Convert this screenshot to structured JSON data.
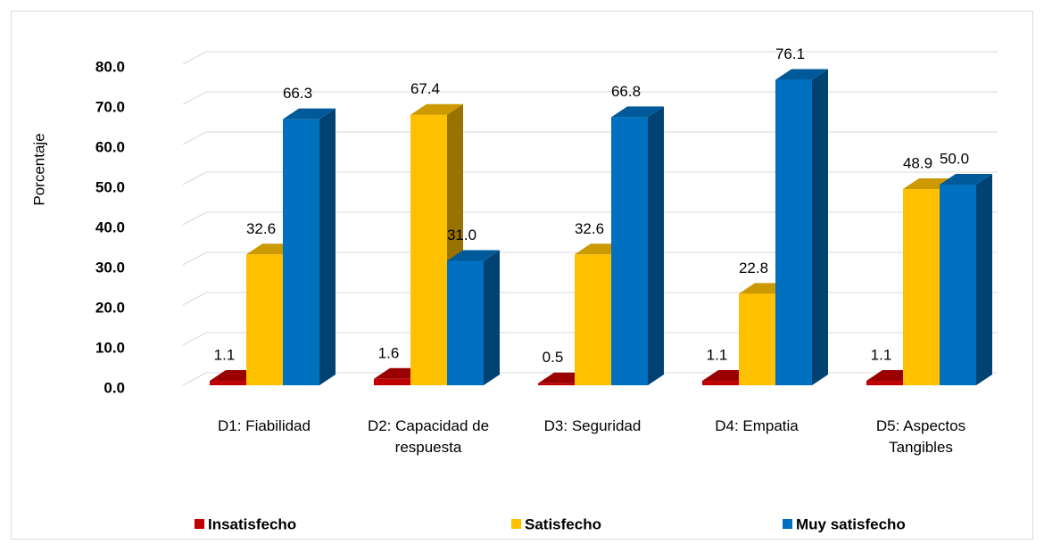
{
  "chart_data": {
    "type": "bar3d",
    "y_label": "Porcentaje",
    "categories": [
      "D1: Fiabilidad",
      "D2: Capacidad de respuesta",
      "D3: Seguridad",
      "D4: Empatia",
      "D5: Aspectos Tangibles"
    ],
    "series": [
      {
        "name": "Insatisfecho",
        "color": "#c00000",
        "values": [
          1.1,
          1.6,
          0.5,
          1.1,
          1.1
        ],
        "value_labels": [
          "1.1",
          "1.6",
          "0.5",
          "1.1",
          "1.1"
        ]
      },
      {
        "name": "Satisfecho",
        "color": "#ffc000",
        "values": [
          32.6,
          67.4,
          32.6,
          22.8,
          48.9
        ],
        "value_labels": [
          "32.6",
          "67.4",
          "32.6",
          "22.8",
          "48.9"
        ]
      },
      {
        "name": "Muy satisfecho",
        "color": "#0070c0",
        "values": [
          66.3,
          31.0,
          66.8,
          76.1,
          50.0
        ],
        "value_labels": [
          "66.3",
          "31.0",
          "66.8",
          "76.1",
          "50.0"
        ]
      }
    ],
    "ylim": [
      0,
      80
    ],
    "yticks": [
      {
        "value": 0,
        "label": "0.0"
      },
      {
        "value": 10,
        "label": "10.0"
      },
      {
        "value": 20,
        "label": "20.0"
      },
      {
        "value": 30,
        "label": "30.0"
      },
      {
        "value": 40,
        "label": "40.0"
      },
      {
        "value": 50,
        "label": "50.0"
      },
      {
        "value": 60,
        "label": "60.0"
      },
      {
        "value": 70,
        "label": "70.0"
      },
      {
        "value": 80,
        "label": "80.0"
      }
    ],
    "grid": true,
    "legend": "bottom"
  }
}
